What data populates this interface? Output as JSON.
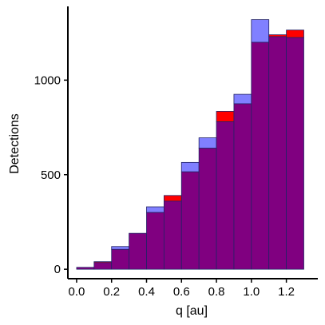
{
  "chart_data": {
    "type": "bar",
    "title": "",
    "xlabel": "q [au]",
    "ylabel": "Detections",
    "bin_edges": [
      0.0,
      0.1,
      0.2,
      0.3,
      0.4,
      0.5,
      0.6,
      0.7,
      0.8,
      0.9,
      1.0,
      1.1,
      1.2,
      1.3
    ],
    "xticks": [
      "0.0",
      "0.2",
      "0.4",
      "0.6",
      "0.8",
      "1.0",
      "1.2"
    ],
    "xtick_values": [
      0.0,
      0.2,
      0.4,
      0.6,
      0.8,
      1.0,
      1.2
    ],
    "yticks": [
      "0",
      "500",
      "1000"
    ],
    "ytick_values": [
      0,
      500,
      1000
    ],
    "xlim": [
      -0.05,
      1.38
    ],
    "ylim": [
      -50,
      1390
    ],
    "grid": false,
    "legend": "none",
    "overlap_color": "#800080",
    "series": [
      {
        "values": [
          10,
          40,
          105,
          190,
          300,
          390,
          515,
          640,
          835,
          875,
          1200,
          1240,
          1265
        ],
        "color": "#ff0000"
      },
      {
        "values": [
          10,
          35,
          120,
          190,
          330,
          360,
          565,
          695,
          780,
          925,
          1320,
          1230,
          1225
        ],
        "color": "#8080ff"
      }
    ]
  }
}
